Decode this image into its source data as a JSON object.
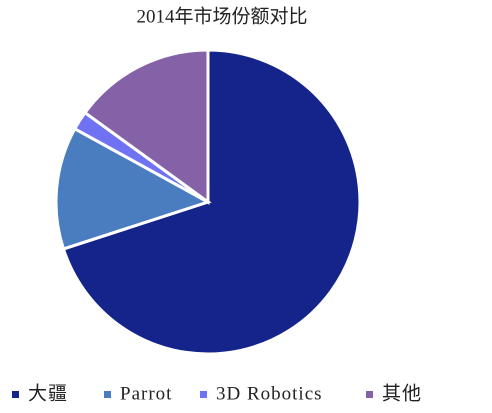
{
  "chart_data": {
    "type": "pie",
    "title": "2014年市场份额对比",
    "categories": [
      "大疆",
      "Parrot",
      "3D Robotics",
      "其他"
    ],
    "values": [
      70,
      13,
      2,
      15
    ],
    "colors": [
      "#14248a",
      "#4a7dbf",
      "#6f72f2",
      "#8562a8"
    ],
    "legend": "bottom"
  }
}
